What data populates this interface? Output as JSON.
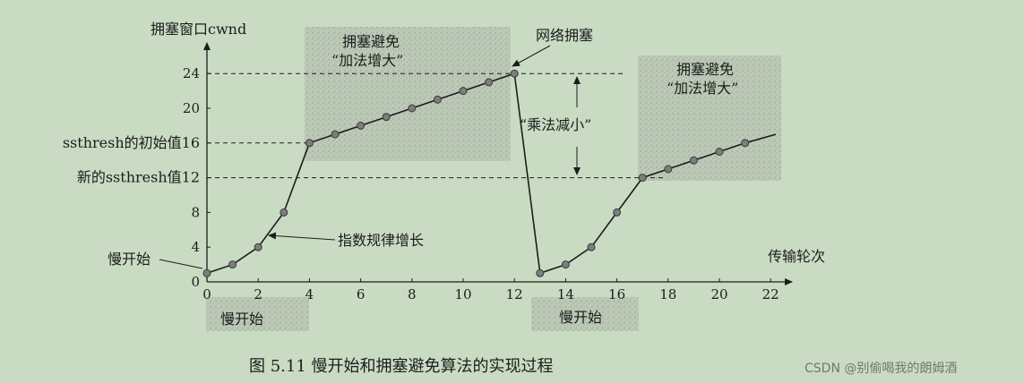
{
  "chart_data": {
    "type": "line",
    "ylabel": "拥塞窗口cwnd",
    "xlabel": "传输轮次",
    "xlim": [
      0,
      22
    ],
    "ylim": [
      0,
      24
    ],
    "x_ticks": [
      0,
      2,
      4,
      6,
      8,
      10,
      12,
      14,
      16,
      18,
      20,
      22
    ],
    "y_ticks": [
      0,
      4,
      8,
      12,
      16,
      20,
      24
    ],
    "y_special_labels": [
      {
        "value": 16,
        "label": "ssthresh的初始值16"
      },
      {
        "value": 12,
        "label": "新的ssthresh值12"
      }
    ],
    "series": [
      {
        "points": [
          [
            0,
            1
          ],
          [
            1,
            2
          ],
          [
            2,
            4
          ],
          [
            3,
            8
          ],
          [
            4,
            16
          ],
          [
            5,
            17
          ],
          [
            6,
            18
          ],
          [
            7,
            19
          ],
          [
            8,
            20
          ],
          [
            9,
            21
          ],
          [
            10,
            22
          ],
          [
            11,
            23
          ],
          [
            12,
            24
          ],
          [
            13,
            1
          ],
          [
            14,
            2
          ],
          [
            15,
            4
          ],
          [
            16,
            8
          ],
          [
            17,
            12
          ],
          [
            18,
            13
          ],
          [
            19,
            14
          ],
          [
            20,
            15
          ],
          [
            21,
            16
          ]
        ],
        "tail_end": [
          22.2,
          17
        ]
      }
    ],
    "annotations": {
      "slow_start_left": "慢开始",
      "slow_start_bottom_1": "慢开始",
      "slow_start_bottom_2": "慢开始",
      "exp_growth": "指数规律增长",
      "ca_1_line1": "拥塞避免",
      "ca_1_line2": "“加法增大”",
      "ca_2_line1": "拥塞避免",
      "ca_2_line2": "“加法增大”",
      "congestion": "网络拥塞",
      "mult_decrease": "“乘法减小”"
    }
  },
  "caption": "图 5.11    慢开始和拥塞避免算法的实现过程",
  "watermark": "CSDN @别偷喝我的朗姆酒"
}
